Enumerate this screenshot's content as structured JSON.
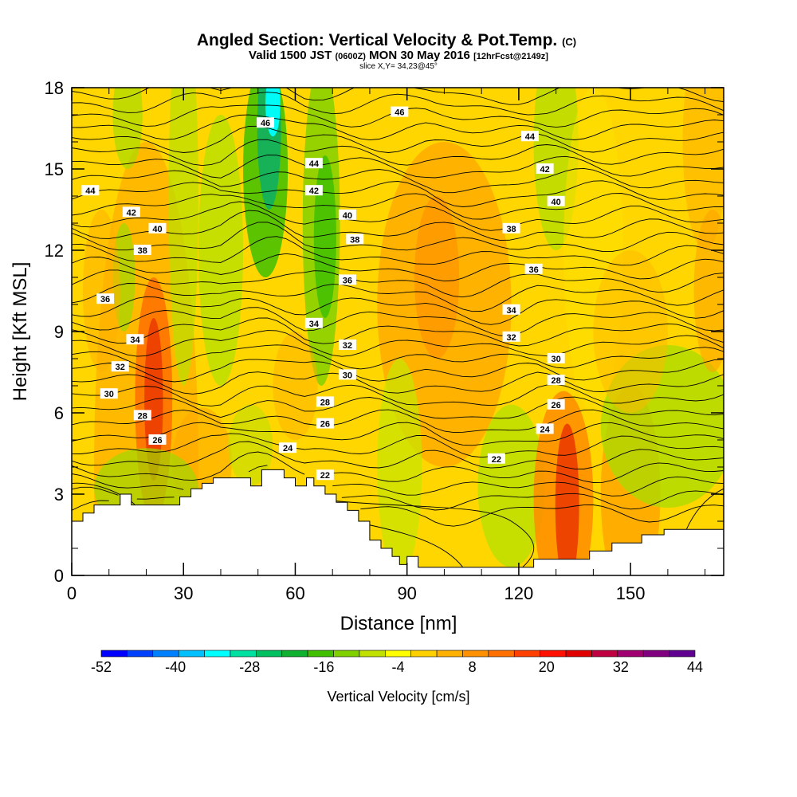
{
  "header": {
    "title": "Angled Section: Vertical Velocity & Pot.Temp.",
    "title_unit": "(C)",
    "line2_a": "Valid 1500 JST",
    "line2_b": "(0600Z)",
    "line2_c": "MON 30 May 2016",
    "line2_d": "[12hrFcst@2149z]",
    "line3": "slice X,Y= 34,23@45°"
  },
  "chart_data": {
    "type": "heatmap",
    "title": "Angled Section: Vertical Velocity & Pot.Temp. (C)",
    "xlabel": "Distance [nm]",
    "ylabel": "Height [Kft MSL]",
    "xlim": [
      0,
      175
    ],
    "ylim": [
      0,
      18
    ],
    "xticks": [
      0,
      30,
      60,
      90,
      120,
      150
    ],
    "yticks": [
      0,
      3,
      6,
      9,
      12,
      15,
      18
    ],
    "colorbar": {
      "label": "Vertical Velocity [cm/s]",
      "tick_labels": [
        "-52",
        "-40",
        "-28",
        "-16",
        "-4",
        "8",
        "20",
        "32",
        "44"
      ],
      "colors": [
        "#0000ff",
        "#0040ff",
        "#0080ff",
        "#00c0ff",
        "#00ffff",
        "#00e0a0",
        "#00c060",
        "#10b030",
        "#40c000",
        "#80d000",
        "#c0e000",
        "#ffff00",
        "#ffd000",
        "#ffb000",
        "#ff9000",
        "#ff7000",
        "#ff4000",
        "#ff1000",
        "#e00000",
        "#c00040",
        "#a00070",
        "#800080",
        "#600090"
      ]
    },
    "contour_labels": [
      {
        "x": 5,
        "y": 14.2,
        "text": "44"
      },
      {
        "x": 16,
        "y": 13.4,
        "text": "42"
      },
      {
        "x": 23,
        "y": 12.8,
        "text": "40"
      },
      {
        "x": 19,
        "y": 12.0,
        "text": "38"
      },
      {
        "x": 9,
        "y": 10.2,
        "text": "36"
      },
      {
        "x": 17,
        "y": 8.7,
        "text": "34"
      },
      {
        "x": 13,
        "y": 7.7,
        "text": "32"
      },
      {
        "x": 10,
        "y": 6.7,
        "text": "30"
      },
      {
        "x": 19,
        "y": 5.9,
        "text": "28"
      },
      {
        "x": 23,
        "y": 5.0,
        "text": "26"
      },
      {
        "x": 52,
        "y": 16.7,
        "text": "46"
      },
      {
        "x": 88,
        "y": 17.1,
        "text": "46"
      },
      {
        "x": 65,
        "y": 15.2,
        "text": "44"
      },
      {
        "x": 65,
        "y": 14.2,
        "text": "42"
      },
      {
        "x": 74,
        "y": 13.3,
        "text": "40"
      },
      {
        "x": 76,
        "y": 12.4,
        "text": "38"
      },
      {
        "x": 74,
        "y": 10.9,
        "text": "36"
      },
      {
        "x": 65,
        "y": 9.3,
        "text": "34"
      },
      {
        "x": 74,
        "y": 8.5,
        "text": "32"
      },
      {
        "x": 74,
        "y": 7.4,
        "text": "30"
      },
      {
        "x": 68,
        "y": 6.4,
        "text": "28"
      },
      {
        "x": 68,
        "y": 5.6,
        "text": "26"
      },
      {
        "x": 58,
        "y": 4.7,
        "text": "24"
      },
      {
        "x": 68,
        "y": 3.7,
        "text": "22"
      },
      {
        "x": 123,
        "y": 16.2,
        "text": "44"
      },
      {
        "x": 127,
        "y": 15.0,
        "text": "42"
      },
      {
        "x": 130,
        "y": 13.8,
        "text": "40"
      },
      {
        "x": 118,
        "y": 12.8,
        "text": "38"
      },
      {
        "x": 124,
        "y": 11.3,
        "text": "36"
      },
      {
        "x": 118,
        "y": 9.8,
        "text": "34"
      },
      {
        "x": 118,
        "y": 8.8,
        "text": "32"
      },
      {
        "x": 130,
        "y": 8.0,
        "text": "30"
      },
      {
        "x": 130,
        "y": 7.2,
        "text": "28"
      },
      {
        "x": 130,
        "y": 6.3,
        "text": "26"
      },
      {
        "x": 127,
        "y": 5.4,
        "text": "24"
      },
      {
        "x": 114,
        "y": 4.3,
        "text": "22"
      }
    ]
  }
}
